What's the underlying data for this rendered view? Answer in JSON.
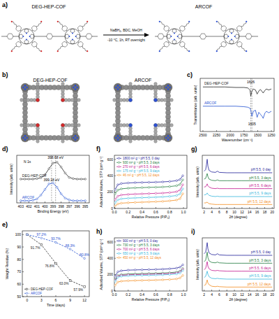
{
  "scheme": {
    "label": "a)",
    "left": "DEG-HEP-COF",
    "right": "ARCOF",
    "conditions": [
      "NaBH₄, BDC, MeOH",
      "-10 °C, 1h, RT overnight"
    ]
  },
  "models": {
    "label": "b)",
    "names": [
      "DEG-HEP-COF",
      "ARCOF"
    ]
  },
  "chart_data": [
    {
      "type": "line",
      "title": "c)",
      "x_label": "Wavenumber (cm⁻¹)",
      "y_label": "Transmittance (arb. units)",
      "x": [
        2500,
        2300,
        2100,
        1900,
        1750,
        1680,
        1640,
        1626,
        1605,
        1580,
        1540,
        1510,
        1480,
        1450,
        1420,
        1400,
        1370,
        1340,
        1300,
        1250
      ],
      "xlim": [
        2550,
        1200
      ],
      "xticks": [
        2500,
        2250,
        2000,
        1750,
        1500,
        1250
      ],
      "ylim": [
        0,
        1.05
      ],
      "tick_labels": "x",
      "legend": "left",
      "series": [
        {
          "name": "DEG-HEP-COF",
          "color": "#222222",
          "values": [
            0.88,
            0.88,
            0.88,
            0.87,
            0.87,
            0.86,
            0.82,
            0.7,
            0.8,
            0.84,
            0.82,
            0.74,
            0.8,
            0.83,
            0.79,
            0.76,
            0.81,
            0.84,
            0.82,
            0.84
          ]
        },
        {
          "name": "ARCOF",
          "color": "#1f4fd1",
          "values": [
            0.5,
            0.5,
            0.5,
            0.5,
            0.49,
            0.48,
            0.46,
            0.42,
            0.3,
            0.4,
            0.42,
            0.28,
            0.38,
            0.34,
            0.3,
            0.26,
            0.36,
            0.4,
            0.37,
            0.4
          ]
        }
      ],
      "annotations": [
        {
          "text": "1626",
          "x": 1626,
          "y": 0.96
        },
        {
          "text": "1605",
          "x": 1605,
          "y": 0.12
        }
      ],
      "vlines": [
        1626,
        1605
      ]
    },
    {
      "type": "line",
      "title": "d)",
      "x_label": "Binding Energy (eV)",
      "y_label": "Intensity (arb. units)",
      "x": [
        403,
        402.5,
        402,
        401.5,
        401,
        400.5,
        400,
        399.5,
        399,
        398.5,
        398,
        397.5,
        397,
        396.5,
        396,
        395.5,
        395
      ],
      "xlim": [
        403.5,
        394.5
      ],
      "xticks": [
        403,
        402,
        401,
        400,
        399,
        398,
        397,
        396,
        395
      ],
      "ylim": [
        0,
        1.1
      ],
      "tick_labels": "x",
      "legend": "left",
      "series": [
        {
          "name": "DEG-HEP-COF",
          "color": "#222222",
          "marker": "circle",
          "values": [
            0.55,
            0.55,
            0.55,
            0.55,
            0.56,
            0.58,
            0.65,
            0.79,
            0.92,
            0.94,
            0.83,
            0.69,
            0.59,
            0.56,
            0.55,
            0.55,
            0.55
          ]
        },
        {
          "name": "ARCOF",
          "color": "#1f4fd1",
          "marker": "circle",
          "values": [
            0.05,
            0.05,
            0.05,
            0.06,
            0.09,
            0.18,
            0.31,
            0.44,
            0.46,
            0.36,
            0.21,
            0.11,
            0.07,
            0.05,
            0.05,
            0.05,
            0.05
          ]
        }
      ],
      "annotations": [
        {
          "text": "N 1s",
          "x": 402.2,
          "y": 0.92
        },
        {
          "text": "398.68 eV",
          "x": 398.68,
          "y": 1.02
        },
        {
          "text": "399.18 eV",
          "x": 399.18,
          "y": 0.5
        }
      ],
      "vlines": [
        398.68,
        399.18
      ]
    },
    {
      "type": "line",
      "title": "e)",
      "x_label": "Time (days)",
      "y_label": "Weight Residue (%)",
      "x": [
        0,
        3,
        6,
        9,
        12
      ],
      "xlim": [
        -1,
        13
      ],
      "xticks": [
        0,
        3,
        6,
        9,
        12
      ],
      "ylim": [
        50,
        103
      ],
      "yticks": [
        50,
        60,
        70,
        80,
        90,
        100
      ],
      "legend": "lower left",
      "data_labels": true,
      "series": [
        {
          "name": "DEG-HEP-COF",
          "color": "#222222",
          "marker": "square",
          "line_style": "dashed",
          "values": [
            100,
            91.7,
            76.8,
            63.0,
            57.9
          ],
          "value_labels": [
            null,
            "91.7%",
            "76.8%",
            "63.0%",
            "57.9%"
          ]
        },
        {
          "name": "ARCOF",
          "color": "#1f4fd1",
          "marker": "circle",
          "line_style": "dashed",
          "values": [
            100,
            97.2,
            93.7,
            88.3,
            80.8
          ],
          "value_labels": [
            null,
            "97.2%",
            "93.7%",
            "88.3%",
            "80.8%"
          ]
        }
      ]
    },
    {
      "type": "line",
      "title": "f)",
      "x_label": "Relative Pressure (P/P₀)",
      "y_label": "Adsorbed Volume, STP (cm³ g⁻¹)",
      "x": [
        0.01,
        0.05,
        0.1,
        0.2,
        0.3,
        0.4,
        0.5,
        0.6,
        0.7,
        0.8,
        0.9,
        0.95,
        0.99
      ],
      "xlim": [
        0,
        1.05
      ],
      "xticks": [
        {
          "value": 0,
          "label": "0.0"
        },
        0.2,
        0.4,
        0.6,
        0.8,
        {
          "value": 1,
          "label": "1.0"
        }
      ],
      "ylim": [
        0,
        650
      ],
      "yticks": [
        0,
        200,
        400,
        600
      ],
      "legend": "upper left",
      "series": [
        {
          "name": "1800 m² g⁻¹ pH 5.5, 0 day",
          "color": "#1f1f99",
          "marker": "circle",
          "values": [
            230,
            290,
            305,
            312,
            316,
            318,
            320,
            322,
            325,
            330,
            340,
            355,
            400
          ]
        },
        {
          "name": "930 m² g⁻¹ pH 5.5, 3 days",
          "color": "#1e7a3c",
          "marker": "circle",
          "values": [
            180,
            225,
            240,
            248,
            252,
            255,
            258,
            260,
            263,
            268,
            278,
            295,
            350
          ]
        },
        {
          "name": "270 m² g⁻¹ pH 5.5, 6 days",
          "color": "#c2188f",
          "marker": "circle",
          "values": [
            110,
            150,
            165,
            172,
            176,
            179,
            182,
            185,
            188,
            194,
            205,
            225,
            290
          ]
        },
        {
          "name": "175 m² g⁻¹ pH 5.5, 9 days",
          "color": "#35b6dc",
          "marker": "circle",
          "values": [
            70,
            105,
            118,
            125,
            129,
            132,
            135,
            138,
            142,
            148,
            158,
            178,
            240
          ]
        },
        {
          "name": "46 m² g⁻¹ pH 5.5, 12 days",
          "color": "#f28c1e",
          "marker": "circle",
          "values": [
            30,
            55,
            65,
            70,
            74,
            77,
            80,
            83,
            87,
            93,
            103,
            120,
            180
          ]
        }
      ]
    },
    {
      "type": "line",
      "title": "g)",
      "x_label": "2θ (degree)",
      "y_label": "Intensity (arb. units)",
      "x": [
        2,
        2.4,
        2.6,
        2.8,
        3.0,
        3.3,
        4,
        5,
        5.5,
        6,
        8,
        10,
        12,
        15,
        18,
        20
      ],
      "xlim": [
        1.5,
        20.5
      ],
      "xticks": [
        2,
        4,
        6,
        8,
        10,
        12,
        14,
        16,
        18,
        20
      ],
      "ylim": [
        0.5,
        7.2
      ],
      "tick_labels": "x",
      "legend": "right",
      "series": [
        {
          "name": "pH 5.5, 0 day",
          "color": "#1f1f99",
          "values": [
            5.2,
            5.4,
            6.0,
            6.7,
            5.8,
            5.3,
            5.1,
            5.05,
            5.2,
            5.05,
            5.0,
            5.0,
            5.0,
            5.0,
            5.0,
            5.0
          ]
        },
        {
          "name": "pH 5.5, 3 days",
          "color": "#1e7a3c",
          "values": [
            4.2,
            4.3,
            4.6,
            4.9,
            4.5,
            4.2,
            4.05,
            4.0,
            4.1,
            4.0,
            4.0,
            4.0,
            4.0,
            4.0,
            4.0,
            4.0
          ]
        },
        {
          "name": "pH 5.5, 6 days",
          "color": "#c2188f",
          "values": [
            3.2,
            3.25,
            3.4,
            3.6,
            3.35,
            3.2,
            3.05,
            3.0,
            3.05,
            3.0,
            3.0,
            3.0,
            3.0,
            3.0,
            3.0,
            3.0
          ]
        },
        {
          "name": "pH 5.5, 9 days",
          "color": "#35b6dc",
          "values": [
            2.2,
            2.25,
            2.3,
            2.45,
            2.3,
            2.15,
            2.05,
            2.0,
            2.05,
            2.0,
            2.0,
            2.0,
            2.0,
            2.0,
            2.0,
            2.0
          ]
        },
        {
          "name": "pH 5.5, 12 days",
          "color": "#f28c1e",
          "values": [
            1.2,
            1.2,
            1.25,
            1.3,
            1.2,
            1.1,
            1.05,
            1.0,
            1.0,
            1.0,
            1.0,
            1.0,
            1.0,
            1.0,
            1.0,
            1.0
          ]
        }
      ]
    },
    {
      "type": "line",
      "title": "h)",
      "x_label": "Relative Pressure (P/P₀)",
      "y_label": "Adsorbed Volume, STP (cm³ g⁻¹)",
      "x": [
        0.01,
        0.05,
        0.1,
        0.2,
        0.3,
        0.4,
        0.5,
        0.6,
        0.7,
        0.8,
        0.9,
        0.95,
        0.99
      ],
      "xlim": [
        0,
        1.05
      ],
      "xticks": [
        {
          "value": 0,
          "label": "0.0"
        },
        0.2,
        0.4,
        0.6,
        0.8,
        {
          "value": 1,
          "label": "1.0"
        }
      ],
      "ylim": [
        0,
        650
      ],
      "yticks": [
        0,
        200,
        400,
        600
      ],
      "legend": "upper left",
      "series": [
        {
          "name": "900 m² g⁻¹ pH 5.5, 0 day",
          "color": "#1f1f99",
          "marker": "circle",
          "values": [
            180,
            235,
            248,
            255,
            258,
            260,
            262,
            264,
            267,
            272,
            280,
            292,
            320
          ]
        },
        {
          "name": "730 m² g⁻¹ pH 5.5, 3 days",
          "color": "#1e7a3c",
          "marker": "circle",
          "values": [
            140,
            190,
            202,
            208,
            211,
            213,
            215,
            217,
            220,
            224,
            232,
            244,
            275
          ]
        },
        {
          "name": "700 m² g⁻¹ pH 5.5, 6 days",
          "color": "#c2188f",
          "marker": "circle",
          "values": [
            130,
            180,
            192,
            198,
            201,
            203,
            205,
            207,
            210,
            214,
            221,
            233,
            265
          ]
        },
        {
          "name": "650 m² g⁻¹ pH 5.5, 9 days",
          "color": "#35b6dc",
          "marker": "circle",
          "values": [
            120,
            168,
            180,
            186,
            189,
            191,
            193,
            195,
            198,
            202,
            209,
            220,
            250
          ]
        },
        {
          "name": "450 m² g⁻¹ pH 5.5, 12 days",
          "color": "#f28c1e",
          "marker": "circle",
          "values": [
            70,
            110,
            120,
            125,
            128,
            130,
            132,
            134,
            137,
            141,
            148,
            160,
            190
          ]
        }
      ]
    },
    {
      "type": "line",
      "title": "i)",
      "x_label": "2θ (degree)",
      "y_label": "Intensity (arb. units)",
      "x": [
        2,
        2.4,
        2.6,
        2.8,
        3.0,
        3.3,
        4,
        5,
        5.5,
        6,
        8,
        10,
        12,
        15,
        18,
        20
      ],
      "xlim": [
        1.5,
        20.5
      ],
      "xticks": [
        2,
        4,
        6,
        8,
        10,
        12,
        14,
        16,
        18,
        20
      ],
      "ylim": [
        0.5,
        7.2
      ],
      "tick_labels": "x",
      "legend": "right",
      "series": [
        {
          "name": "pH 5.5, 0 day",
          "color": "#1f1f99",
          "values": [
            5.2,
            5.4,
            6.0,
            6.6,
            5.8,
            5.3,
            5.1,
            5.05,
            5.2,
            5.05,
            5.0,
            5.0,
            5.0,
            5.0,
            5.0,
            5.0
          ]
        },
        {
          "name": "pH 5.5, 3 days",
          "color": "#1e7a3c",
          "values": [
            4.2,
            4.4,
            4.9,
            5.4,
            4.7,
            4.3,
            4.1,
            4.05,
            4.15,
            4.05,
            4.0,
            4.0,
            4.0,
            4.0,
            4.0,
            4.0
          ]
        },
        {
          "name": "pH 5.5, 6 days",
          "color": "#c2188f",
          "values": [
            3.2,
            3.35,
            3.8,
            4.2,
            3.6,
            3.3,
            3.1,
            3.05,
            3.1,
            3.05,
            3.0,
            3.0,
            3.0,
            3.0,
            3.0,
            3.0
          ]
        },
        {
          "name": "pH 5.5, 9 days",
          "color": "#35b6dc",
          "values": [
            2.2,
            2.35,
            2.7,
            3.0,
            2.6,
            2.3,
            2.1,
            2.05,
            2.1,
            2.05,
            2.0,
            2.0,
            2.0,
            2.0,
            2.0,
            2.0
          ]
        },
        {
          "name": "pH 5.5, 12 days",
          "color": "#f28c1e",
          "values": [
            1.2,
            1.3,
            1.6,
            1.9,
            1.5,
            1.3,
            1.1,
            1.05,
            1.1,
            1.05,
            1.0,
            1.0,
            1.0,
            1.0,
            1.0,
            1.0
          ]
        }
      ]
    }
  ]
}
